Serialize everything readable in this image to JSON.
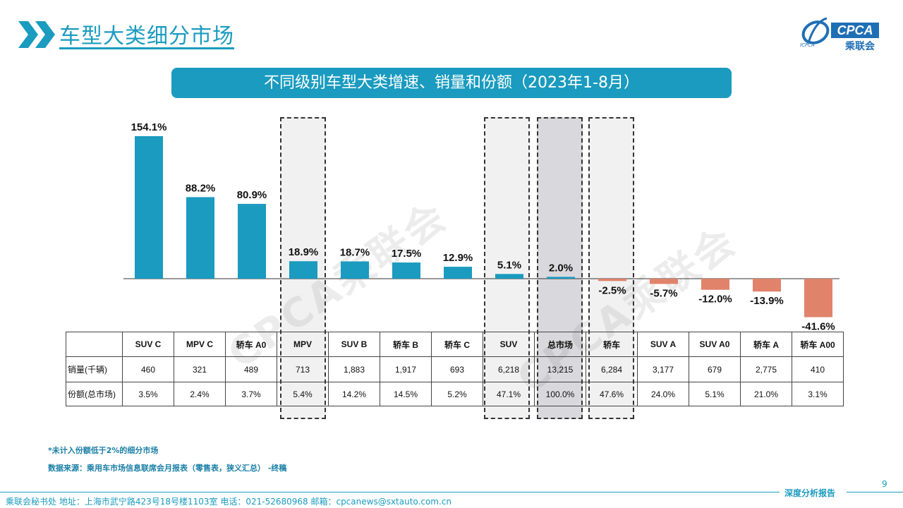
{
  "header": {
    "title": "车型大类细分市场",
    "logo": {
      "main": "CPCA",
      "cn": "乘联会",
      "small": "ICPCA"
    }
  },
  "banner": "不同级别车型大类增速、销量和份额（2023年1-8月）",
  "watermarks": [
    "CPCA乘联会",
    "CPCA乘联会",
    "乘联会",
    "乘联会"
  ],
  "chart_data": {
    "type": "bar",
    "categories": [
      "SUV C",
      "MPV C",
      "轿车 A0",
      "MPV",
      "SUV B",
      "轿车 B",
      "轿车 C",
      "SUV",
      "总市场",
      "轿车",
      "SUV A",
      "SUV A0",
      "轿车 A",
      "轿车 A00"
    ],
    "series": [
      {
        "values": [
          154.1,
          88.2,
          80.9,
          18.9,
          18.7,
          17.5,
          12.9,
          5.1,
          2.0,
          -2.5,
          -5.7,
          -12.0,
          -13.9,
          -41.6
        ]
      }
    ],
    "value_labels": [
      "154.1%",
      "88.2%",
      "80.9%",
      "18.9%",
      "18.7%",
      "17.5%",
      "12.9%",
      "5.1%",
      "2.0%",
      "-2.5%",
      "-5.7%",
      "-12.0%",
      "-13.9%",
      "-41.6%"
    ],
    "colors": {
      "positive": "#1a9bbf",
      "negative": "#e0836a"
    },
    "ylim": [
      -41.6,
      154.1
    ],
    "highlighted": [
      "MPV",
      "SUV",
      "总市场",
      "轿车"
    ]
  },
  "table": {
    "header": [
      "",
      "SUV C",
      "MPV C",
      "轿车  A0",
      "MPV",
      "SUV B",
      "轿车  B",
      "轿车  C",
      "SUV",
      "总市场",
      "轿车",
      "SUV A",
      "SUV A0",
      "轿车  A",
      "轿车  A00"
    ],
    "rows": [
      {
        "label": "销量(千辆)",
        "values": [
          "460",
          "321",
          "489",
          "713",
          "1,883",
          "1,917",
          "693",
          "6,218",
          "13,215",
          "6,284",
          "3,177",
          "679",
          "2,775",
          "410"
        ]
      },
      {
        "label": "份额(总市场)",
        "values": [
          "3.5%",
          "2.4%",
          "3.7%",
          "5.4%",
          "14.2%",
          "14.5%",
          "5.2%",
          "47.1%",
          "100.0%",
          "47.6%",
          "24.0%",
          "5.1%",
          "21.0%",
          "3.1%"
        ]
      }
    ]
  },
  "notes": [
    "*未计入份额低于2%的细分市场",
    "数据来源：乘用车市场信息联席会月报表（零售表，狭义汇总）    -终稿"
  ],
  "page_number": "9",
  "footer": {
    "text": "乘联会秘书处    地址：上海市武宁路423号18号楼1103室    电话：021-52680968    邮箱：cpcanews@sxtauto.com.cn",
    "report": "深度分析报告"
  }
}
